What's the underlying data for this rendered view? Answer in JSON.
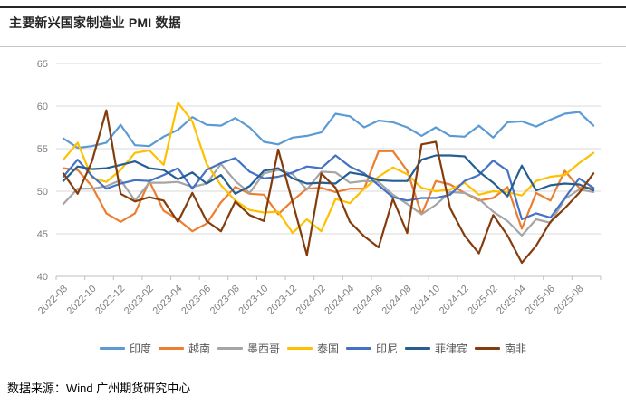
{
  "title": "主要新兴国家制造业 PMI 数据",
  "footer": {
    "source_label": "数据来源：Wind 广州期货研究中心"
  },
  "colors": {
    "grid": "#d9d9d9",
    "axis": "#bfbfbf",
    "axis_label": "#808080",
    "legend_label": "#595959"
  },
  "chart_data": {
    "type": "line",
    "title": "主要新兴国家制造业 PMI 数据",
    "xlabel": "",
    "ylabel": "",
    "ylim": [
      40,
      65
    ],
    "yticks": [
      40,
      45,
      50,
      55,
      60,
      65
    ],
    "grid": true,
    "legend_position": "bottom",
    "x": [
      "2022-08",
      "2022-09",
      "2022-10",
      "2022-11",
      "2022-12",
      "2023-01",
      "2023-02",
      "2023-03",
      "2023-04",
      "2023-05",
      "2023-06",
      "2023-07",
      "2023-08",
      "2023-09",
      "2023-10",
      "2023-11",
      "2023-12",
      "2024-01",
      "2024-02",
      "2024-03",
      "2024-04",
      "2024-05",
      "2024-06",
      "2024-07",
      "2024-08",
      "2024-09",
      "2024-10",
      "2024-11",
      "2024-12",
      "2025-01",
      "2025-02",
      "2025-03",
      "2025-04",
      "2025-05",
      "2025-06",
      "2025-07",
      "2025-08",
      "2025-09"
    ],
    "x_tick_labels": [
      "2022-08",
      "2022-10",
      "2022-12",
      "2023-02",
      "2023-04",
      "2023-06",
      "2023-08",
      "2023-10",
      "2023-12",
      "2024-02",
      "2024-04",
      "2024-06",
      "2024-08",
      "2024-10",
      "2024-12",
      "2025-02",
      "2025-04",
      "2025-06",
      "2025-08"
    ],
    "series": [
      {
        "id": "india",
        "name": "印度",
        "color": "#5B9BD5",
        "values": [
          56.2,
          55.1,
          55.3,
          55.7,
          57.8,
          55.4,
          55.3,
          56.4,
          57.2,
          58.7,
          57.8,
          57.7,
          58.6,
          57.5,
          55.8,
          55.5,
          56.3,
          56.5,
          56.9,
          59.1,
          58.8,
          57.5,
          58.3,
          58.1,
          57.5,
          56.5,
          57.5,
          56.5,
          56.4,
          57.7,
          56.3,
          58.1,
          58.2,
          57.6,
          58.4,
          59.1,
          59.3,
          57.7
        ]
      },
      {
        "id": "vietnam",
        "name": "越南",
        "color": "#ED7D31",
        "values": [
          52.7,
          52.5,
          50.6,
          47.4,
          46.4,
          47.4,
          51.2,
          47.7,
          46.7,
          45.3,
          46.2,
          48.7,
          50.5,
          49.7,
          49.6,
          47.3,
          48.9,
          50.3,
          50.4,
          49.9,
          50.3,
          50.3,
          54.7,
          54.7,
          52.4,
          47.3,
          51.2,
          50.8,
          49.8,
          48.9,
          49.2,
          50.5,
          45.6,
          49.8,
          48.9,
          52.4,
          50.4,
          50.4
        ]
      },
      {
        "id": "mexico",
        "name": "墨西哥",
        "color": "#A5A5A5",
        "values": [
          48.5,
          50.3,
          50.3,
          50.6,
          51.3,
          48.9,
          51.0,
          51.0,
          51.1,
          50.5,
          50.9,
          53.2,
          51.2,
          49.8,
          52.1,
          52.5,
          52.0,
          50.2,
          52.3,
          52.2,
          51.0,
          51.2,
          51.1,
          49.6,
          48.5,
          47.3,
          48.4,
          49.9,
          49.8,
          49.1,
          47.6,
          46.5,
          44.8,
          46.7,
          46.3,
          49.1,
          50.2,
          49.9
        ]
      },
      {
        "id": "thailand",
        "name": "泰国",
        "color": "#FFC000",
        "values": [
          53.7,
          55.7,
          51.6,
          51.1,
          52.5,
          54.5,
          54.8,
          53.1,
          60.4,
          58.2,
          53.2,
          50.7,
          48.9,
          47.8,
          47.5,
          47.6,
          45.1,
          46.7,
          45.3,
          49.1,
          48.6,
          50.3,
          51.7,
          52.8,
          52.0,
          50.4,
          50.0,
          50.2,
          51.0,
          49.6,
          50.0,
          49.9,
          49.5,
          51.2,
          51.7,
          51.9,
          53.3,
          54.5
        ]
      },
      {
        "id": "indonesia",
        "name": "印尼",
        "color": "#4472C4",
        "values": [
          51.7,
          53.7,
          51.8,
          50.3,
          50.9,
          51.3,
          51.2,
          51.9,
          52.7,
          50.3,
          52.5,
          53.3,
          53.9,
          52.3,
          51.5,
          51.7,
          52.2,
          52.9,
          52.7,
          54.2,
          52.9,
          52.1,
          50.7,
          49.3,
          48.9,
          49.2,
          49.2,
          49.6,
          51.2,
          51.9,
          53.6,
          52.4,
          46.7,
          47.4,
          46.9,
          49.2,
          51.5,
          50.4
        ]
      },
      {
        "id": "philippines",
        "name": "菲律宾",
        "color": "#255E91",
        "values": [
          51.2,
          52.9,
          52.6,
          52.7,
          53.1,
          53.5,
          52.7,
          52.5,
          51.4,
          52.2,
          50.9,
          51.9,
          49.7,
          50.6,
          52.4,
          52.7,
          51.5,
          50.9,
          51.0,
          50.9,
          52.2,
          51.9,
          51.3,
          51.2,
          51.2,
          53.7,
          54.2,
          54.2,
          54.1,
          52.3,
          51.0,
          49.4,
          53.0,
          50.1,
          50.7,
          50.9,
          50.8,
          50.1
        ]
      },
      {
        "id": "south-africa",
        "name": "南非",
        "color": "#843C0C",
        "values": [
          52.1,
          49.7,
          53.5,
          59.5,
          49.7,
          48.8,
          49.3,
          48.9,
          46.4,
          49.8,
          46.5,
          45.3,
          48.8,
          47.2,
          46.5,
          54.9,
          48.7,
          42.5,
          52.1,
          50.4,
          46.4,
          44.7,
          43.4,
          49.1,
          45.1,
          55.5,
          55.8,
          48.0,
          44.8,
          42.7,
          47.2,
          44.8,
          41.6,
          43.6,
          46.4,
          48.0,
          49.8,
          52.1
        ]
      }
    ]
  }
}
